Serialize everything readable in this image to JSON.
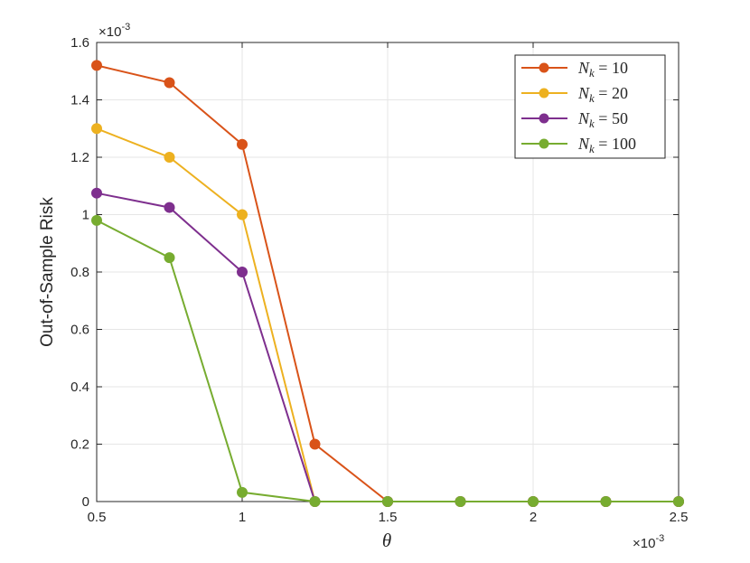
{
  "chart_data": {
    "type": "line",
    "xlabel": "θ",
    "ylabel": "Out-of-Sample Risk",
    "x_exponent": "×10",
    "x_exponent_power": "-3",
    "y_exponent": "×10",
    "y_exponent_power": "-3",
    "xlim": [
      0.5,
      2.5
    ],
    "ylim": [
      0,
      1.6
    ],
    "x_ticks": [
      "0.5",
      "1",
      "1.5",
      "2",
      "2.5"
    ],
    "y_ticks": [
      "0",
      "0.2",
      "0.4",
      "0.6",
      "0.8",
      "1",
      "1.2",
      "1.4",
      "1.6"
    ],
    "grid": true,
    "legend_position": "top-right",
    "x": [
      0.5,
      0.75,
      1.0,
      1.25,
      1.5,
      1.75,
      2.0,
      2.25,
      2.5
    ],
    "series": [
      {
        "name": "N_k = 10",
        "label_base": "N",
        "label_sub": "k",
        "label_rest": " = 10",
        "color": "#D95319",
        "values": [
          1.52,
          1.46,
          1.245,
          0.2,
          0,
          0,
          0,
          0,
          0
        ]
      },
      {
        "name": "N_k = 20",
        "label_base": "N",
        "label_sub": "k",
        "label_rest": " = 20",
        "color": "#EDB120",
        "values": [
          1.3,
          1.2,
          1.0,
          0,
          0,
          0,
          0,
          0,
          0
        ]
      },
      {
        "name": "N_k = 50",
        "label_base": "N",
        "label_sub": "k",
        "label_rest": " = 50",
        "color": "#7E2F8E",
        "values": [
          1.075,
          1.025,
          0.8,
          0,
          0,
          0,
          0,
          0,
          0
        ]
      },
      {
        "name": "N_k = 100",
        "label_base": "N",
        "label_sub": "k",
        "label_rest": " = 100",
        "color": "#77AC30",
        "values": [
          0.98,
          0.85,
          0.032,
          0,
          0,
          0,
          0,
          0,
          0
        ]
      }
    ]
  }
}
